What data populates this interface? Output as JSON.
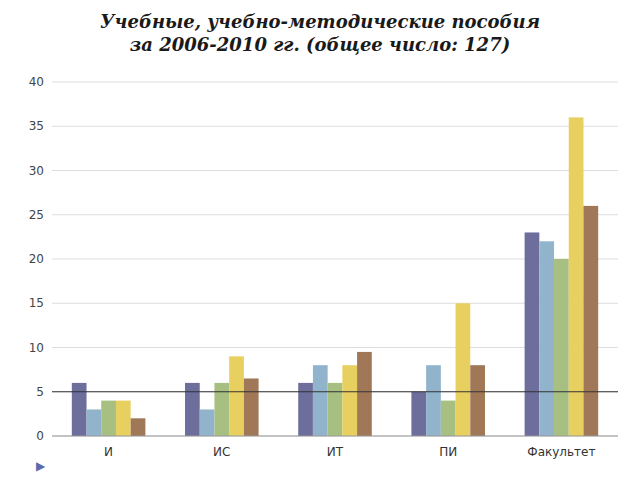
{
  "chart_data": {
    "type": "bar",
    "title": "Учебные, учебно-методические пособия\nза 2006-2010 гг. (общее число: 127)",
    "categories": [
      "И",
      "ИС",
      "ИТ",
      "ПИ",
      "Факультет"
    ],
    "series": [
      {
        "values": [
          6,
          6,
          6,
          5,
          23
        ],
        "color": "#6d6e9c"
      },
      {
        "values": [
          3,
          3,
          8,
          8,
          22
        ],
        "color": "#91b4cc"
      },
      {
        "values": [
          4,
          6,
          6,
          4,
          20
        ],
        "color": "#a8bf82"
      },
      {
        "values": [
          4,
          9,
          8,
          15,
          36
        ],
        "color": "#e8d060"
      },
      {
        "values": [
          2,
          6.5,
          9.5,
          8,
          26
        ],
        "color": "#a07858"
      }
    ],
    "ylim": [
      0,
      40
    ],
    "yticks": [
      0,
      5,
      10,
      15,
      20,
      25,
      30,
      35,
      40
    ],
    "grid": true,
    "hline": 5,
    "annotation": "▶"
  }
}
